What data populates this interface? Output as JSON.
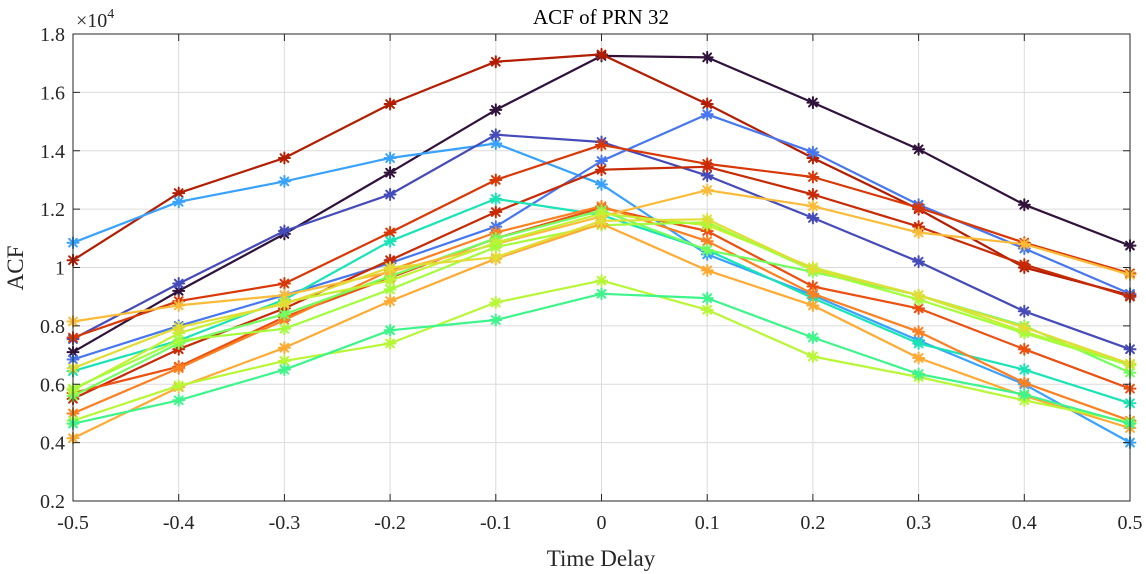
{
  "chart_data": {
    "type": "line",
    "title": "ACF of PRN 32",
    "xlabel": "Time Delay",
    "ylabel": "ACF",
    "y_exponent_label": "×10",
    "y_exponent_power": "4",
    "x": [
      -0.5,
      -0.4,
      -0.3,
      -0.2,
      -0.1,
      0,
      0.1,
      0.2,
      0.3,
      0.4,
      0.5
    ],
    "x_tick_labels": [
      "-0.5",
      "-0.4",
      "-0.3",
      "-0.2",
      "-0.1",
      "0",
      "0.1",
      "0.2",
      "0.3",
      "0.4",
      "0.5"
    ],
    "y_ticks": [
      0.2,
      0.4,
      0.6,
      0.8,
      1,
      1.2,
      1.4,
      1.6,
      1.8
    ],
    "y_tick_labels": [
      "0.2",
      "0.4",
      "0.6",
      "0.8",
      "1",
      "1.2",
      "1.4",
      "1.6",
      "1.8"
    ],
    "xlim": [
      -0.5,
      0.5
    ],
    "ylim": [
      0.2,
      1.8
    ],
    "grid": true,
    "legend": "none",
    "marker": "asterisk",
    "series": [
      {
        "color": "#30123b",
        "values": [
          0.71,
          0.92,
          1.115,
          1.325,
          1.54,
          1.725,
          1.72,
          1.565,
          1.405,
          1.215,
          1.075
        ]
      },
      {
        "color": "#b31e02",
        "values": [
          1.025,
          1.255,
          1.375,
          1.56,
          1.705,
          1.73,
          1.56,
          1.375,
          1.2,
          1.0,
          0.905
        ]
      },
      {
        "color": "#39a2fc",
        "values": [
          1.085,
          1.225,
          1.295,
          1.375,
          1.425,
          1.285,
          1.045,
          0.905,
          0.75,
          0.6,
          0.4
        ]
      },
      {
        "color": "#454bb9",
        "values": [
          0.755,
          0.945,
          1.125,
          1.25,
          1.455,
          1.43,
          1.315,
          1.17,
          1.02,
          0.85,
          0.72
        ]
      },
      {
        "color": "#4777ef",
        "values": [
          0.685,
          0.8,
          0.905,
          1.015,
          1.14,
          1.365,
          1.525,
          1.395,
          1.215,
          1.065,
          0.91
        ]
      },
      {
        "color": "#d93806",
        "values": [
          0.76,
          0.885,
          0.945,
          1.12,
          1.3,
          1.42,
          1.355,
          1.31,
          1.205,
          1.085,
          0.98
        ]
      },
      {
        "color": "#c72a04",
        "values": [
          0.55,
          0.72,
          0.86,
          1.025,
          1.19,
          1.335,
          1.345,
          1.25,
          1.14,
          1.01,
          0.9
        ]
      },
      {
        "color": "#1ae4b6",
        "values": [
          0.645,
          0.75,
          0.89,
          1.09,
          1.235,
          1.18,
          1.06,
          0.895,
          0.74,
          0.65,
          0.535
        ]
      },
      {
        "color": "#eb5010",
        "values": [
          0.57,
          0.66,
          0.83,
          0.965,
          1.1,
          1.205,
          1.125,
          0.935,
          0.86,
          0.72,
          0.585
        ]
      },
      {
        "color": "#fb8022",
        "values": [
          0.5,
          0.655,
          0.82,
          0.99,
          1.12,
          1.21,
          1.09,
          0.91,
          0.78,
          0.605,
          0.475
        ]
      },
      {
        "color": "#72fe5e",
        "values": [
          0.56,
          0.74,
          0.84,
          0.97,
          1.1,
          1.195,
          1.06,
          0.985,
          0.905,
          0.8,
          0.64
        ]
      },
      {
        "color": "#fabb39",
        "values": [
          0.815,
          0.87,
          0.905,
          0.985,
          1.08,
          1.175,
          1.265,
          1.21,
          1.12,
          1.08,
          0.975
        ]
      },
      {
        "color": "#c4f134",
        "values": [
          0.58,
          0.775,
          0.88,
          0.955,
          1.085,
          1.185,
          1.145,
          1.0,
          0.905,
          0.78,
          0.67
        ]
      },
      {
        "color": "#a4fc3c",
        "values": [
          0.585,
          0.75,
          0.79,
          0.925,
          1.07,
          1.145,
          1.155,
          0.99,
          0.89,
          0.775,
          0.665
        ]
      },
      {
        "color": "#feaa33",
        "values": [
          0.415,
          0.59,
          0.725,
          0.885,
          1.03,
          1.15,
          0.99,
          0.87,
          0.69,
          0.56,
          0.45
        ]
      },
      {
        "color": "#e1dd37",
        "values": [
          0.655,
          0.795,
          0.875,
          1.0,
          1.035,
          1.16,
          1.165,
          0.995,
          0.905,
          0.795,
          0.67
        ]
      },
      {
        "color": "#b8f735",
        "values": [
          0.475,
          0.595,
          0.68,
          0.74,
          0.88,
          0.955,
          0.855,
          0.695,
          0.625,
          0.545,
          0.47
        ]
      },
      {
        "color": "#3df58a",
        "values": [
          0.465,
          0.545,
          0.65,
          0.785,
          0.82,
          0.91,
          0.895,
          0.76,
          0.635,
          0.565,
          0.465
        ]
      }
    ]
  }
}
